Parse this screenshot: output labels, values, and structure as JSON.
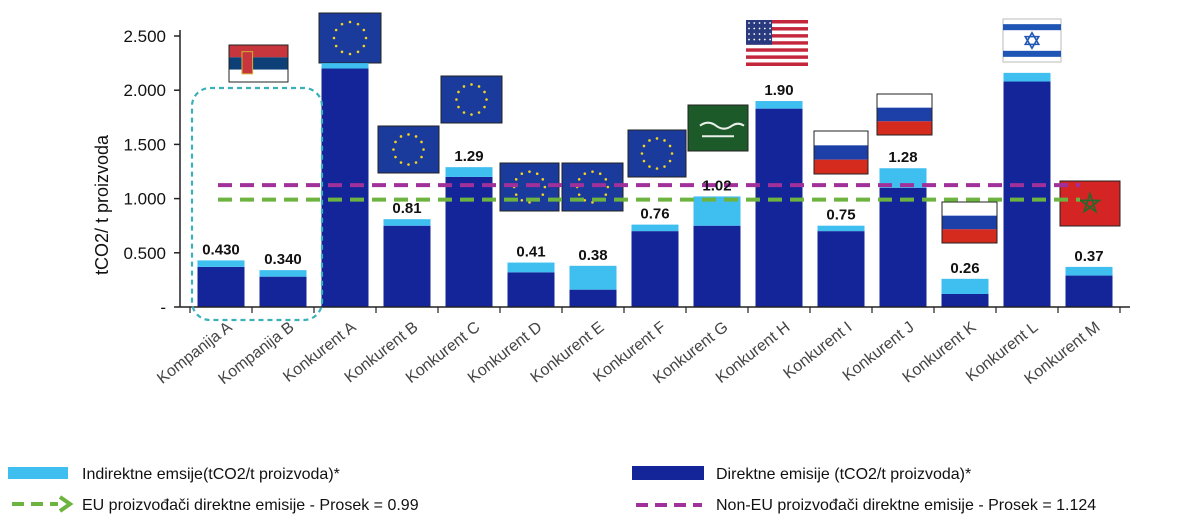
{
  "chart_data": {
    "type": "bar",
    "stacked": true,
    "ylabel": "tCO2/ t proizvoda",
    "ylim": [
      0,
      2.5
    ],
    "yticks": [
      "-",
      "0.500",
      "1.000",
      "1.500",
      "2.000",
      "2.500"
    ],
    "categories": [
      "Kompanija A",
      "Kompanija B",
      "Konkurent A",
      "Konkurent B",
      "Konkurent C",
      "Konkurent D",
      "Konkurent E",
      "Konkurent F",
      "Konkurent G",
      "Konkurent H",
      "Konkurent I",
      "Konkurent J",
      "Konkurent K",
      "Konkurent L",
      "Konkurent M"
    ],
    "series": [
      {
        "name": "Direktne emisije (tCO2/t proizvoda)*",
        "color": "#14259A",
        "values": [
          0.37,
          0.28,
          2.2,
          0.75,
          1.2,
          0.32,
          0.16,
          0.7,
          0.75,
          1.83,
          0.7,
          1.1,
          0.12,
          2.08,
          0.29
        ]
      },
      {
        "name": "Indirektne emsije(tCO2/t proizvoda)*",
        "color": "#3FBEF0",
        "values": [
          0.06,
          0.06,
          0.05,
          0.06,
          0.09,
          0.09,
          0.22,
          0.06,
          0.27,
          0.07,
          0.05,
          0.18,
          0.14,
          0.08,
          0.08
        ]
      }
    ],
    "data_labels": [
      "0.430",
      "0.340",
      "",
      "0.81",
      "1.29",
      "0.41",
      "0.38",
      "0.76",
      "1.02",
      "1.90",
      "0.75",
      "1.28",
      "0.26",
      "",
      "0.37"
    ],
    "flags": [
      "rs-flag-icon",
      "",
      "eu-flag-icon",
      "eu-flag-icon",
      "eu-flag-icon",
      "eu-flag-icon",
      "eu-flag-icon",
      "eu-flag-icon",
      "sa-flag-icon",
      "us-flag-icon",
      "ru-flag-icon",
      "ru-flag-icon",
      "ru-flag-icon",
      "il-flag-icon",
      "ma-flag-icon"
    ],
    "reference_lines": [
      {
        "name": "EU proizvođači direktne emisije - Prosek = 0.99",
        "value": 0.99,
        "color": "#6DB33F"
      },
      {
        "name": "Non-EU proizvođači direktne emisije - Prosek = 1.124",
        "value": 1.124,
        "color": "#A0309A"
      }
    ],
    "highlight": {
      "categories": [
        "Kompanija A",
        "Kompanija B"
      ],
      "color": "#3AB0B8"
    },
    "legend": "bottom"
  }
}
